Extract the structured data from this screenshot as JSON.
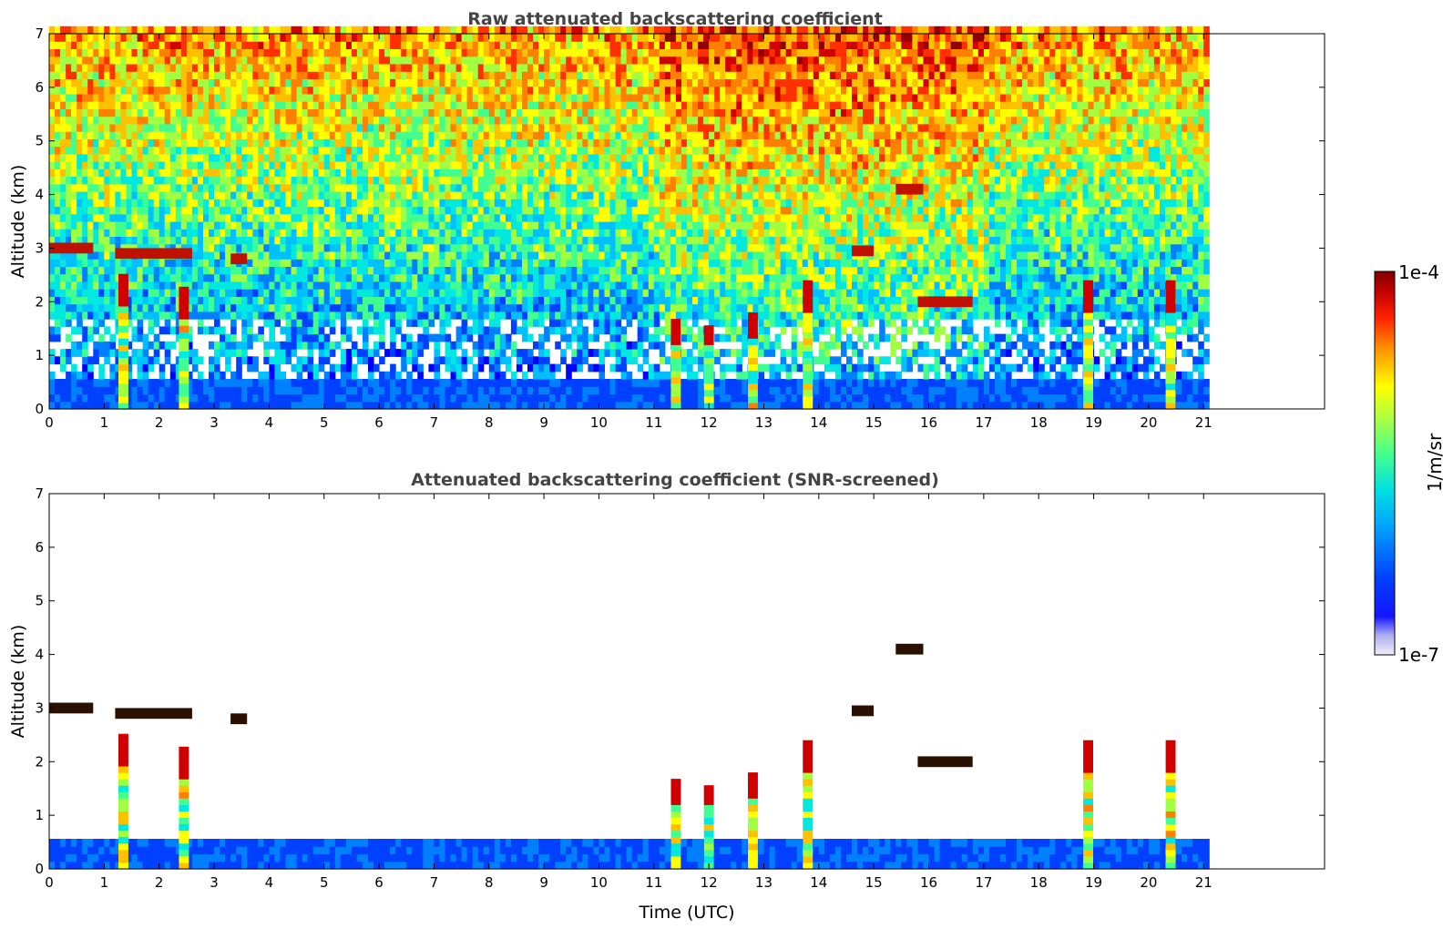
{
  "chart_data": [
    {
      "type": "heatmap",
      "title": "Raw attenuated backscattering coefficient",
      "xlabel": "",
      "ylabel": "Altitude (km)",
      "xlim": [
        0,
        23.2
      ],
      "ylim": [
        0,
        7
      ],
      "x_ticks": [
        "0",
        "1",
        "2",
        "3",
        "4",
        "5",
        "6",
        "7",
        "8",
        "9",
        "10",
        "11",
        "12",
        "13",
        "14",
        "15",
        "16",
        "17",
        "18",
        "19",
        "20",
        "21"
      ],
      "y_ticks": [
        "0",
        "1",
        "2",
        "3",
        "4",
        "5",
        "6",
        "7"
      ],
      "data_extent_hours": 21.1,
      "features": {
        "boundary_layer_top_km": 0.45,
        "cloud_layers": [
          {
            "t_start": 0.0,
            "t_end": 0.8,
            "alt_km": 3.0
          },
          {
            "t_start": 1.2,
            "t_end": 2.6,
            "alt_km": 2.9
          },
          {
            "t_start": 3.3,
            "t_end": 3.6,
            "alt_km": 2.8
          },
          {
            "t_start": 14.6,
            "t_end": 15.0,
            "alt_km": 2.95
          },
          {
            "t_start": 15.4,
            "t_end": 15.9,
            "alt_km": 4.1
          },
          {
            "t_start": 15.8,
            "t_end": 16.8,
            "alt_km": 2.0
          }
        ],
        "convective_columns": [
          {
            "t": 1.35,
            "top_km": 2.5
          },
          {
            "t": 2.45,
            "top_km": 2.2
          },
          {
            "t": 11.4,
            "top_km": 1.6
          },
          {
            "t": 12.0,
            "top_km": 1.5
          },
          {
            "t": 12.8,
            "top_km": 1.7
          },
          {
            "t": 13.8,
            "top_km": 2.4
          },
          {
            "t": 18.9,
            "top_km": 2.3
          },
          {
            "t": 20.4,
            "top_km": 2.3
          }
        ]
      }
    },
    {
      "type": "heatmap",
      "title": "Attenuated backscattering coefficient (SNR-screened)",
      "xlabel": "Time (UTC)",
      "ylabel": "Altitude (km)",
      "xlim": [
        0,
        23.2
      ],
      "ylim": [
        0,
        7
      ],
      "x_ticks": [
        "0",
        "1",
        "2",
        "3",
        "4",
        "5",
        "6",
        "7",
        "8",
        "9",
        "10",
        "11",
        "12",
        "13",
        "14",
        "15",
        "16",
        "17",
        "18",
        "19",
        "20",
        "21"
      ],
      "y_ticks": [
        "0",
        "1",
        "2",
        "3",
        "4",
        "5",
        "6",
        "7"
      ],
      "data_extent_hours": 21.1
    }
  ],
  "colorbar": {
    "label": "1/m/sr",
    "max_label": "1e-4",
    "min_label": "1e-7",
    "scale": "log",
    "range": [
      1e-07,
      0.0001
    ],
    "colormap": [
      "#e6e6f8",
      "#c8c8f0",
      "#9a9af0",
      "#0000ff",
      "#0030ff",
      "#0080ff",
      "#00d0ff",
      "#40ffc0",
      "#a0ff60",
      "#ffff00",
      "#ffa000",
      "#ff4000",
      "#d00000",
      "#800000"
    ]
  }
}
